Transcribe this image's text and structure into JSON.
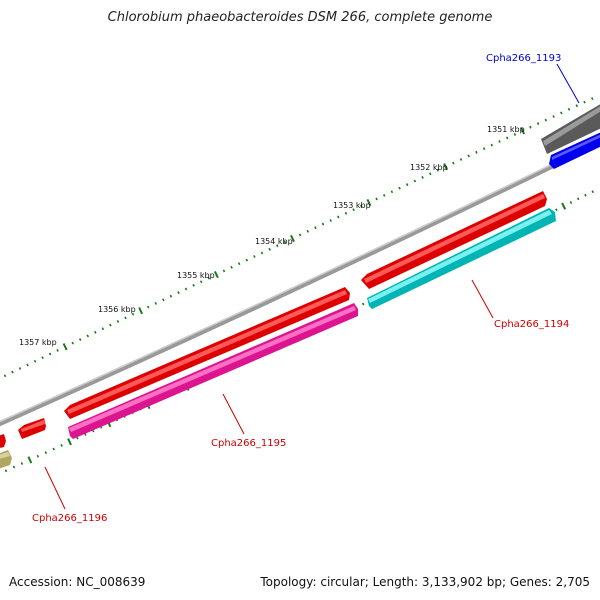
{
  "title": "Chlorobium phaeobacteroides DSM 266, complete genome",
  "footer": {
    "accession": "Accession: NC_008639",
    "summary": "Topology: circular; Length: 3,133,902 bp; Genes: 2,705"
  },
  "scale_labels": [
    "1351 kbp",
    "1352 kbp",
    "1353 kbp",
    "1354 kbp",
    "1355 kbp",
    "1356 kbp",
    "1357 kbp"
  ],
  "genes": [
    {
      "label": "Cpha266_1193",
      "color": "#0000cc"
    },
    {
      "label": "Cpha266_1194",
      "color": "#cc0000"
    },
    {
      "label": "Cpha266_1195",
      "color": "#cc0000"
    },
    {
      "label": "Cpha266_1196",
      "color": "#cc0000"
    }
  ],
  "colors": {
    "backbone": "#888888",
    "tick": "#1a7a1a",
    "gene_red": "#ee0000",
    "gene_blue": "#0000ee",
    "gene_gray": "#666666",
    "gene_cyan": "#00c8c8",
    "gene_magenta": "#f01ca0",
    "gene_olive": "#b0a860"
  }
}
